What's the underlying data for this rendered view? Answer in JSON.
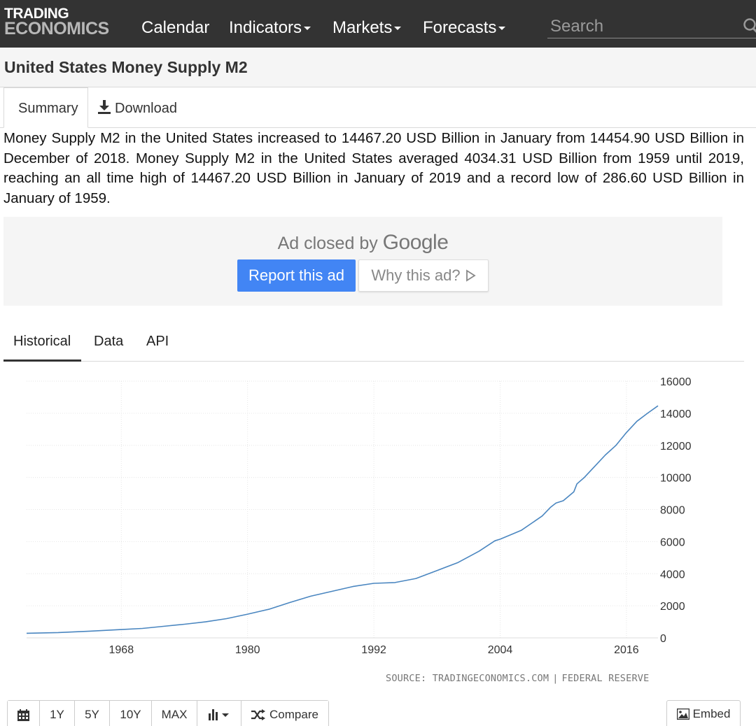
{
  "brand": {
    "line1": "TRADING",
    "line2": "ECONOMICS"
  },
  "nav": {
    "items": [
      {
        "label": "Calendar",
        "dropdown": false
      },
      {
        "label": "Indicators",
        "dropdown": true
      },
      {
        "label": "Markets",
        "dropdown": true
      },
      {
        "label": "Forecasts",
        "dropdown": true
      }
    ],
    "search_placeholder": "Search"
  },
  "page": {
    "title": "United States Money Supply M2"
  },
  "summary_tabs": {
    "summary": "Summary",
    "download": "Download"
  },
  "description": "Money Supply M2 in the United States increased to 14467.20 USD Billion in January from 14454.90 USD Billion in December of 2018. Money Supply M2 in the United States averaged 4034.31 USD Billion from 1959 until 2019, reaching an all time high of 14467.20 USD Billion in January of 2019 and a record low of 286.60 USD Billion in January of 1959.",
  "ad": {
    "closed_text": "Ad closed by",
    "brand": "Google",
    "report_label": "Report this ad",
    "why_label": "Why this ad?"
  },
  "chart_tabs": [
    "Historical",
    "Data",
    "API"
  ],
  "chart_data": {
    "type": "line",
    "title": "",
    "xlabel": "",
    "ylabel": "",
    "x_ticks": [
      "1968",
      "1980",
      "1992",
      "2004",
      "2016"
    ],
    "y_ticks": [
      "0",
      "2000",
      "4000",
      "6000",
      "8000",
      "10000",
      "12000",
      "14000",
      "16000"
    ],
    "xlim": [
      1959,
      2019
    ],
    "ylim": [
      0,
      16000
    ],
    "grid": true,
    "series": [
      {
        "color": "#4a86c0",
        "points": [
          [
            1959.0,
            287
          ],
          [
            1962,
            330
          ],
          [
            1965,
            420
          ],
          [
            1968,
            520
          ],
          [
            1970,
            590
          ],
          [
            1972,
            720
          ],
          [
            1974,
            850
          ],
          [
            1976,
            1000
          ],
          [
            1978,
            1200
          ],
          [
            1980,
            1480
          ],
          [
            1982,
            1780
          ],
          [
            1984,
            2200
          ],
          [
            1986,
            2600
          ],
          [
            1988,
            2900
          ],
          [
            1990,
            3200
          ],
          [
            1992,
            3400
          ],
          [
            1994,
            3450
          ],
          [
            1996,
            3700
          ],
          [
            1998,
            4200
          ],
          [
            2000,
            4700
          ],
          [
            2002,
            5400
          ],
          [
            2003.5,
            6050
          ],
          [
            2004,
            6150
          ],
          [
            2006,
            6700
          ],
          [
            2008,
            7600
          ],
          [
            2008.8,
            8150
          ],
          [
            2009.3,
            8400
          ],
          [
            2010,
            8550
          ],
          [
            2011,
            9100
          ],
          [
            2011.3,
            9600
          ],
          [
            2012,
            10000
          ],
          [
            2013,
            10700
          ],
          [
            2014,
            11400
          ],
          [
            2015,
            12000
          ],
          [
            2016,
            12800
          ],
          [
            2017,
            13500
          ],
          [
            2018,
            14000
          ],
          [
            2019.0,
            14467
          ]
        ]
      }
    ]
  },
  "source": {
    "left": "SOURCE: TRADINGECONOMICS.COM",
    "right": "FEDERAL RESERVE"
  },
  "toolbar": {
    "ranges": [
      "1Y",
      "5Y",
      "10Y",
      "MAX"
    ],
    "compare": "Compare",
    "embed": "Embed"
  },
  "colors": {
    "navbar": "#333333",
    "accent": "#4285f4",
    "line": "#4a86c0"
  },
  "icons": [
    "search-icon",
    "download-icon",
    "ad-choices-icon",
    "calendar-icon",
    "bar-chart-icon",
    "shuffle-icon",
    "image-icon"
  ]
}
